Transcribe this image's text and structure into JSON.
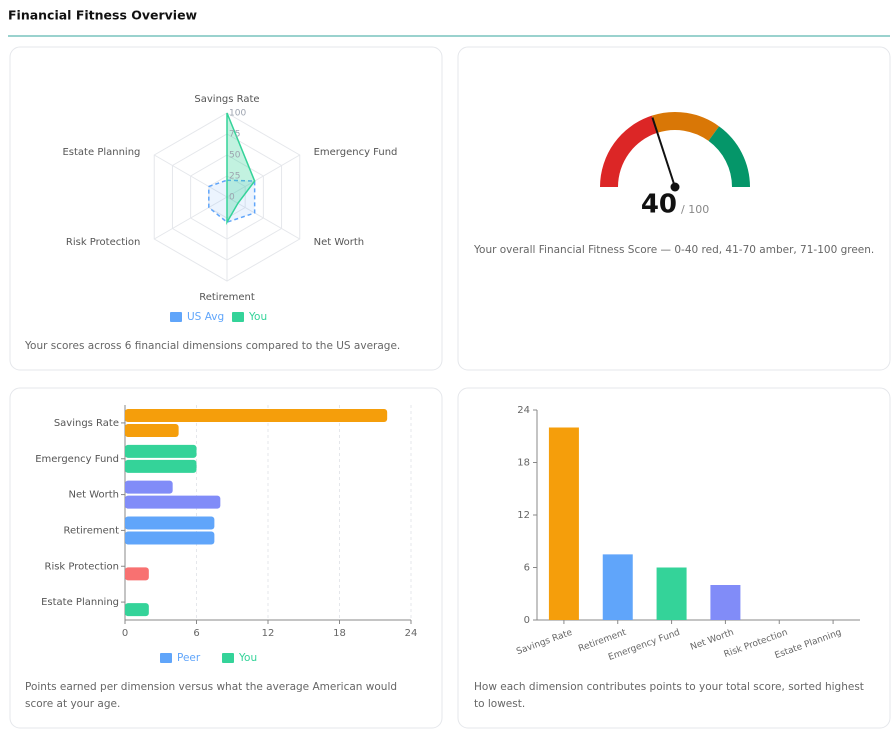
{
  "header": {
    "title": "Financial Fitness Overview"
  },
  "chart_data": [
    {
      "type": "radar",
      "caption": "Your scores across 6 financial dimensions compared to the US average.",
      "categories": [
        "Savings Rate",
        "Emergency Fund",
        "Net Worth",
        "Retirement",
        "Risk Protection",
        "Estate Planning"
      ],
      "series": [
        {
          "name": "US Avg",
          "color": "#60a5fa",
          "dashed": true,
          "values": [
            20,
            38,
            38,
            30,
            25,
            25
          ]
        },
        {
          "name": "You",
          "color": "#34d399",
          "values": [
            100,
            38,
            15,
            30,
            0,
            0
          ]
        }
      ],
      "rlim": [
        0,
        100
      ],
      "rticks": [
        0,
        25,
        50,
        75,
        100
      ]
    },
    {
      "type": "gauge",
      "value": 40,
      "min": 0,
      "max": 100,
      "max_label": "/ 100",
      "caption": "Your overall Financial Fitness Score — 0-40 red, 41-70 amber, 71-100 green.",
      "bands": [
        {
          "from": 0,
          "to": 40,
          "color": "#dc2626"
        },
        {
          "from": 40,
          "to": 70,
          "color": "#d97706"
        },
        {
          "from": 70,
          "to": 100,
          "color": "#059669"
        }
      ]
    },
    {
      "type": "hbar",
      "caption": "Points earned per dimension versus what the average American would score at your age.",
      "categories": [
        "Savings Rate",
        "Emergency Fund",
        "Net Worth",
        "Retirement",
        "Risk Protection",
        "Estate Planning"
      ],
      "bar_colors": [
        "#f59e0b",
        "#34d399",
        "#818cf8",
        "#60a5fa",
        "#f87171",
        "#34d399"
      ],
      "series": [
        {
          "name": "Peer",
          "color": "#60a5fa",
          "values": [
            4.5,
            6,
            8,
            7.5,
            2,
            2
          ]
        },
        {
          "name": "You",
          "color": "#34d399",
          "values": [
            22,
            6,
            4,
            7.5,
            0,
            0
          ]
        }
      ],
      "xlim": [
        0,
        24
      ],
      "xticks": [
        0,
        6,
        12,
        18,
        24
      ],
      "grid": true
    },
    {
      "type": "bar",
      "caption": "How each dimension contributes points to your total score, sorted highest to lowest.",
      "categories": [
        "Savings Rate",
        "Retirement",
        "Emergency Fund",
        "Net Worth",
        "Risk Protection",
        "Estate Planning"
      ],
      "values": [
        22,
        7.5,
        6,
        4,
        0,
        0
      ],
      "colors": [
        "#f59e0b",
        "#60a5fa",
        "#34d399",
        "#818cf8",
        "#f87171",
        "#34d399"
      ],
      "ylim": [
        0,
        24
      ],
      "yticks": [
        0,
        6,
        12,
        18,
        24
      ]
    }
  ]
}
